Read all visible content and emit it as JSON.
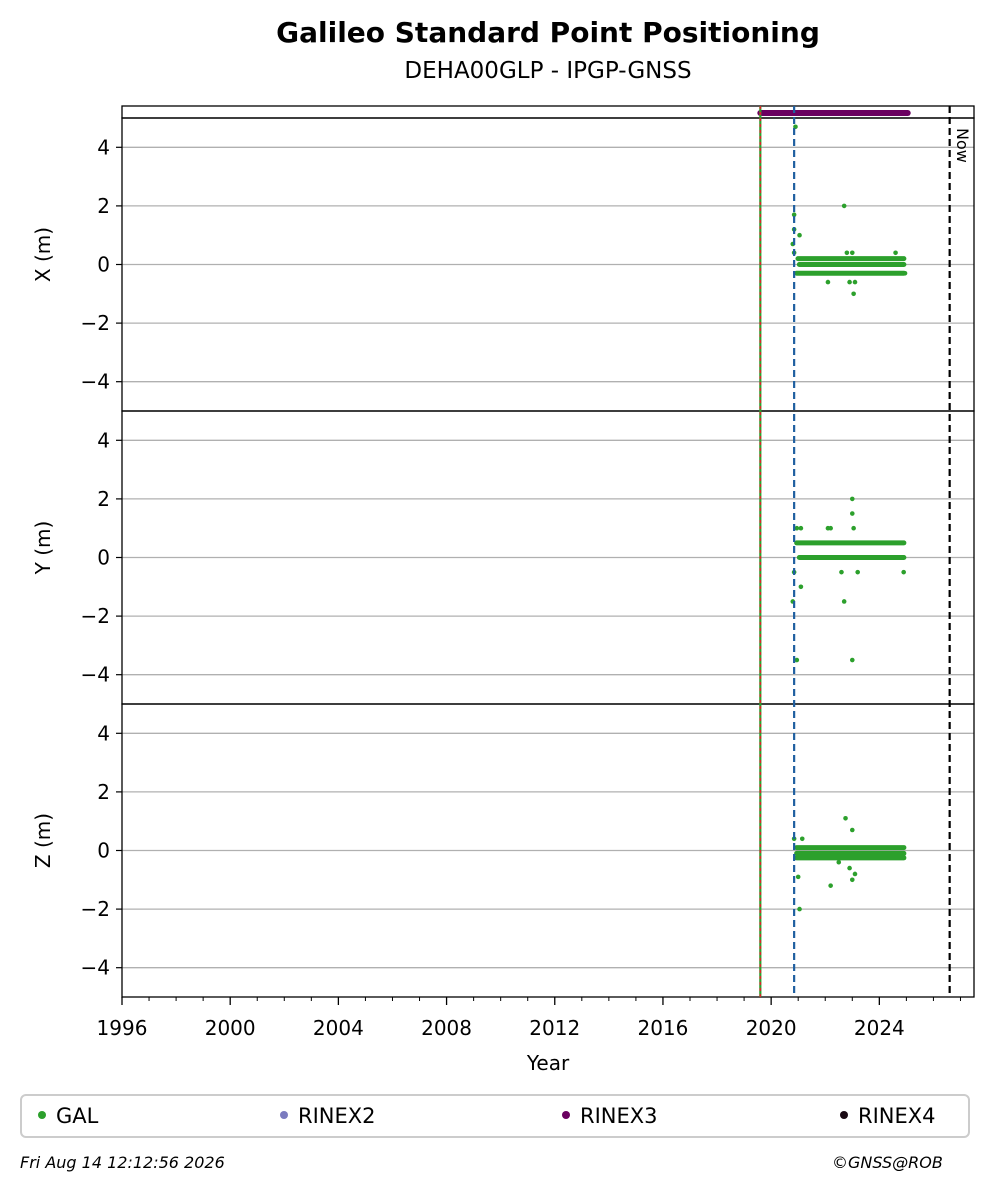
{
  "header": {
    "title": "Galileo Standard Point Positioning",
    "subtitle": "DEHA00GLP - IPGP-GNSS"
  },
  "footer": {
    "timestamp": "Fri Aug 14 12:12:56 2026",
    "credit": "©GNSS@ROB"
  },
  "legend": [
    {
      "label": "GAL",
      "color": "#2ca02c"
    },
    {
      "label": "RINEX2",
      "color": "#7b7bbf"
    },
    {
      "label": "RINEX3",
      "color": "#6a0060"
    },
    {
      "label": "RINEX4",
      "color": "#1a0a14"
    }
  ],
  "chart_data": {
    "type": "scatter",
    "xlabel": "Year",
    "xlim": [
      1996,
      2027.5
    ],
    "xticks": [
      1996,
      2000,
      2004,
      2008,
      2012,
      2016,
      2020,
      2024
    ],
    "yticks": [
      4,
      2,
      0,
      -2,
      -4
    ],
    "ylim": [
      -5,
      5
    ],
    "grid": true,
    "legend_position": "bottom",
    "vertical_lines": [
      {
        "x": 2019.6,
        "style": "solid",
        "colors": [
          "#2ca02c",
          "#d62728"
        ]
      },
      {
        "x": 2020.85,
        "style": "dashed",
        "color": "#1f5fa0"
      },
      {
        "x": 2026.6,
        "style": "dashed",
        "color": "#000000",
        "label": "Now"
      }
    ],
    "rinex3_availability": {
      "start": 2019.6,
      "end": 2025.05,
      "color": "#6a0060"
    },
    "panels": [
      {
        "ylabel": "X (m)",
        "series": [
          {
            "name": "GAL",
            "color": "#2ca02c",
            "bands": [
              {
                "y": 0.2,
                "start": 2020.9,
                "end": 2025.0
              },
              {
                "y": 0.0,
                "start": 2020.95,
                "end": 2025.0
              },
              {
                "y": -0.3,
                "start": 2020.85,
                "end": 2025.0
              }
            ],
            "points": [
              [
                2020.85,
                1.7
              ],
              [
                2020.9,
                4.7
              ],
              [
                2020.85,
                1.2
              ],
              [
                2021.05,
                1.0
              ],
              [
                2020.8,
                0.7
              ],
              [
                2020.85,
                0.4
              ],
              [
                2022.7,
                2.0
              ],
              [
                2022.8,
                0.4
              ],
              [
                2023.0,
                0.4
              ],
              [
                2022.1,
                -0.6
              ],
              [
                2022.9,
                -0.6
              ],
              [
                2023.1,
                -0.6
              ],
              [
                2023.05,
                -1.0
              ],
              [
                2024.6,
                0.4
              ],
              [
                2024.95,
                -0.3
              ]
            ]
          }
        ]
      },
      {
        "ylabel": "Y (m)",
        "series": [
          {
            "name": "GAL",
            "color": "#2ca02c",
            "bands": [
              {
                "y": 0.5,
                "start": 2020.85,
                "end": 2025.0
              },
              {
                "y": 0.0,
                "start": 2020.95,
                "end": 2025.0
              }
            ],
            "points": [
              [
                2020.85,
                -0.5
              ],
              [
                2020.8,
                -1.5
              ],
              [
                2020.95,
                -3.5
              ],
              [
                2021.1,
                -1.0
              ],
              [
                2020.95,
                1.0
              ],
              [
                2021.1,
                1.0
              ],
              [
                2022.2,
                1.0
              ],
              [
                2022.1,
                1.0
              ],
              [
                2023.0,
                2.0
              ],
              [
                2023.0,
                1.5
              ],
              [
                2023.05,
                1.0
              ],
              [
                2023.0,
                -3.5
              ],
              [
                2022.7,
                -1.5
              ],
              [
                2022.6,
                -0.5
              ],
              [
                2023.2,
                -0.5
              ],
              [
                2024.9,
                -0.5
              ]
            ]
          }
        ]
      },
      {
        "ylabel": "Z (m)",
        "series": [
          {
            "name": "GAL",
            "color": "#2ca02c",
            "bands": [
              {
                "y": 0.1,
                "start": 2020.85,
                "end": 2025.0
              },
              {
                "y": -0.1,
                "start": 2020.85,
                "end": 2025.0
              },
              {
                "y": -0.25,
                "start": 2020.85,
                "end": 2025.0
              }
            ],
            "points": [
              [
                2020.85,
                0.4
              ],
              [
                2021.15,
                0.4
              ],
              [
                2021.0,
                -0.9
              ],
              [
                2021.05,
                -2.0
              ],
              [
                2022.2,
                -1.2
              ],
              [
                2022.75,
                1.1
              ],
              [
                2023.0,
                0.7
              ],
              [
                2023.0,
                -1.0
              ],
              [
                2023.1,
                -0.8
              ],
              [
                2022.9,
                -0.6
              ],
              [
                2022.5,
                -0.4
              ]
            ]
          }
        ]
      }
    ]
  }
}
